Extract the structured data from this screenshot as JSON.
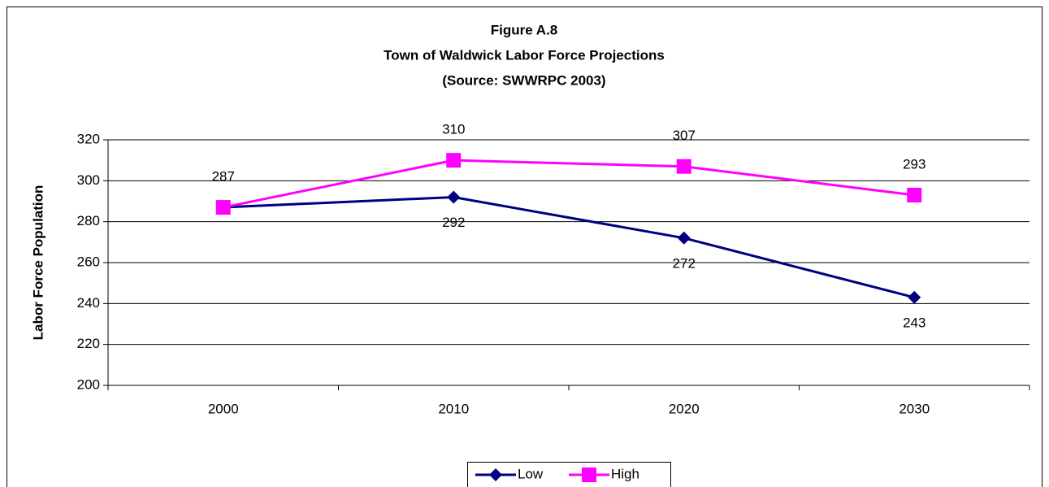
{
  "chart_data": {
    "type": "line",
    "title": [
      "Figure A.8",
      "Town of Waldwick Labor Force Projections",
      "(Source:  SWWRPC 2003)"
    ],
    "y_label": "Labor Force Population",
    "categories": [
      "2000",
      "2010",
      "2020",
      "2030"
    ],
    "series": [
      {
        "name": "Low",
        "color": "#000080",
        "marker": "diamond",
        "values": [
          287,
          292,
          272,
          243
        ],
        "value_labels": [
          null,
          "292",
          "272",
          "243"
        ],
        "label_position": "below"
      },
      {
        "name": "High",
        "color": "#ff00ff",
        "marker": "square",
        "values": [
          287,
          310,
          307,
          293
        ],
        "value_labels": [
          "287",
          "310",
          "307",
          "293"
        ],
        "label_position": "above"
      }
    ],
    "ylim": [
      200,
      320
    ],
    "yticks": [
      200,
      220,
      240,
      260,
      280,
      300,
      320
    ],
    "grid": true,
    "legend": "bottom"
  }
}
